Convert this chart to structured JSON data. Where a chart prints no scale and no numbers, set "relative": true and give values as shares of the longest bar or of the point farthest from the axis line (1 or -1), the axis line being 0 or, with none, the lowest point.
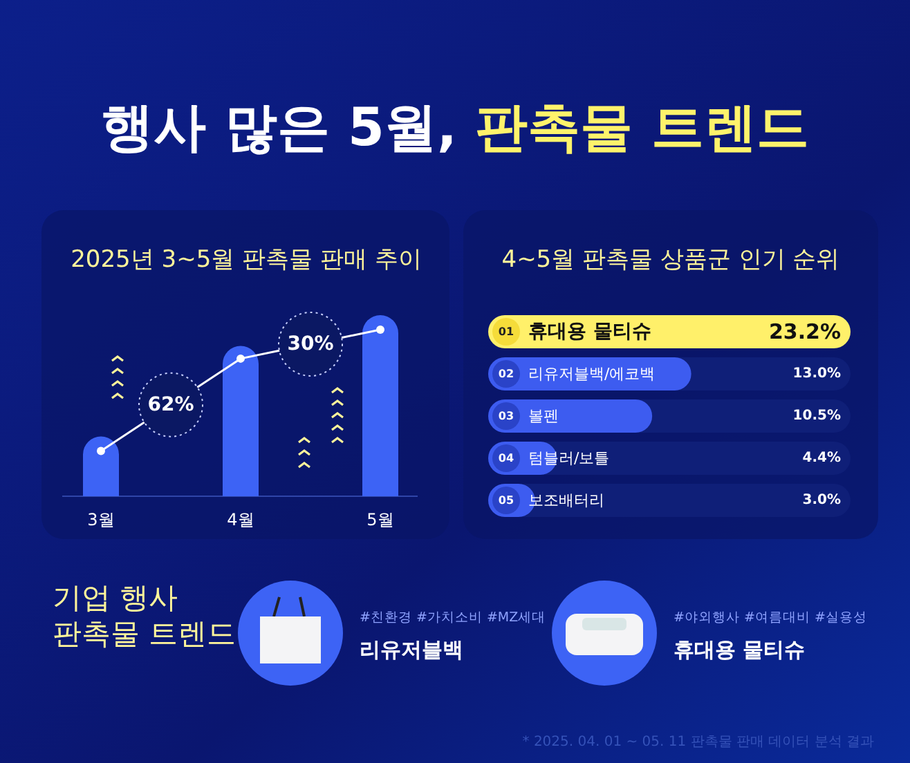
{
  "chart_data": [
    {
      "type": "other",
      "title": "행사 많은 5월, 판촉물 트렌드"
    },
    {
      "type": "bar",
      "title": "2025년 3~5월 판촉물 판매 추이",
      "categories": [
        "3월",
        "4월",
        "5월"
      ],
      "relative": true,
      "marker": "circle",
      "annotations": [
        "62%",
        "30%"
      ],
      "series": [
        {
          "type": "bar",
          "color": "#3d63f5",
          "values": [
            0.33,
            0.83,
            1
          ]
        },
        {
          "type": "line",
          "color": "#ffffff",
          "values": [
            0.25,
            0.76,
            0.92
          ]
        }
      ]
    },
    {
      "type": "bar",
      "orientation": "horizontal",
      "title": "4~5월 판촉물 상품군 인기 순위",
      "categories": [
        "휴대용 물티슈",
        "리유저블백/에코백",
        "볼펜",
        "텀블러/보틀",
        "보조배터리"
      ],
      "values": [
        23.2,
        13.0,
        10.5,
        4.4,
        3.0
      ],
      "colors": [
        "#fff06a",
        "#3d5cf0",
        "#3d5cf0",
        "#3d5cf0",
        "#3d5cf0"
      ],
      "value_labels": [
        "23.2%",
        "13.0%",
        "10.5%",
        "4.4%",
        "3.0%"
      ],
      "annotations": [
        "01",
        "02",
        "03",
        "04",
        "05"
      ]
    },
    {
      "type": "other",
      "title": "기업 행사 판촉물 트렌드",
      "annotations": [
        "#친환경 #가치소비 #MZ세대",
        "리유저블백",
        "#야외행사 #여름대비 #실용성",
        "휴대용 물티슈",
        "* 2025. 04. 01 ~ 05. 11 판촉물 판매 데이터 분석 결과"
      ]
    }
  ]
}
